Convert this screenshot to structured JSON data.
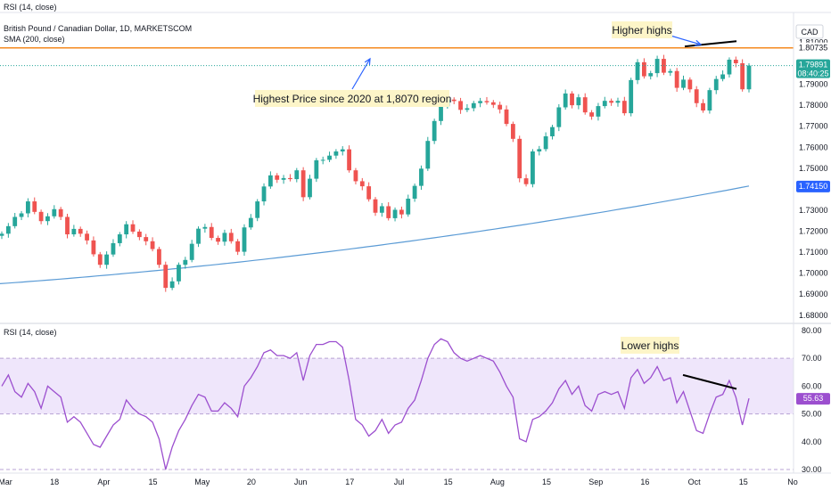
{
  "header": {
    "top_label": "RSI (14, close)",
    "symbol_title": "British Pound / Canadian Dollar, 1D, MARKETSCOM",
    "sma_label": "SMA (200, close)",
    "currency": "CAD"
  },
  "rsi_pane": {
    "label": "RSI (14, close)"
  },
  "annotations": {
    "higher_highs": "Higher highs",
    "lower_highs": "Lower highs",
    "highest_price": "Highest Price since 2020 at 1,8070 region"
  },
  "price_badges": {
    "current_price": "1.79891",
    "countdown": "08:40:25",
    "sma_value": "1.74150",
    "resistance_value": "1.80735",
    "rsi_value": "55.63"
  },
  "colors": {
    "up": "#26a69a",
    "down": "#ef5350",
    "sma": "#5b9bd5",
    "resistance": "#f5891f",
    "rsi_line": "#9c4fcf",
    "rsi_band": "#efe6fb",
    "arrow": "#2962ff",
    "trendline": "#000000",
    "callout_bg": "#fdf5c8"
  },
  "chart_data": [
    {
      "type": "candlestick",
      "title": "British Pound / Canadian Dollar, 1D, MARKETSCOM",
      "x_ticks": [
        "Mar",
        "18",
        "Apr",
        "15",
        "May",
        "20",
        "Jun",
        "17",
        "Jul",
        "15",
        "Aug",
        "15",
        "Sep",
        "16",
        "Oct",
        "15",
        "No"
      ],
      "y_ticks": [
        "1.68000",
        "1.69000",
        "1.70000",
        "1.71000",
        "1.72000",
        "1.73000",
        "1.74000",
        "1.75000",
        "1.76000",
        "1.77000",
        "1.78000",
        "1.79000",
        "1.80000",
        "1.81000"
      ],
      "ylim": [
        1.6765,
        1.8225
      ],
      "close": [
        1.7188,
        1.7224,
        1.7268,
        1.7285,
        1.7342,
        1.7292,
        1.7248,
        1.7271,
        1.7305,
        1.7268,
        1.7185,
        1.7211,
        1.7188,
        1.7156,
        1.709,
        1.704,
        1.7089,
        1.7143,
        1.7185,
        1.7233,
        1.7198,
        1.7172,
        1.7152,
        1.7115,
        1.704,
        1.693,
        1.6961,
        1.704,
        1.7063,
        1.714,
        1.7212,
        1.722,
        1.7168,
        1.715,
        1.7192,
        1.7152,
        1.7102,
        1.7218,
        1.7263,
        1.7342,
        1.7413,
        1.7466,
        1.7445,
        1.7453,
        1.7448,
        1.749,
        1.7362,
        1.745,
        1.7538,
        1.754,
        1.756,
        1.758,
        1.759,
        1.749,
        1.7438,
        1.7414,
        1.7352,
        1.7288,
        1.7319,
        1.7262,
        1.7302,
        1.728,
        1.7355,
        1.7416,
        1.7498,
        1.763,
        1.7725,
        1.7795,
        1.7827,
        1.782,
        1.7778,
        1.7786,
        1.781,
        1.782,
        1.7814,
        1.7802,
        1.778,
        1.7711,
        1.764,
        1.7452,
        1.7424,
        1.758,
        1.7591,
        1.7652,
        1.7696,
        1.779,
        1.7856,
        1.78,
        1.7838,
        1.7766,
        1.7746,
        1.7796,
        1.7821,
        1.7812,
        1.7821,
        1.7762,
        1.792,
        1.8005,
        1.7938,
        1.7953,
        1.8021,
        1.7955,
        1.7963,
        1.7883,
        1.7922,
        1.7876,
        1.781,
        1.7775,
        1.7872,
        1.7925,
        1.7947,
        1.8017,
        1.8,
        1.7876,
        1.7989
      ],
      "sma_200": {
        "start": 1.695,
        "end": 1.7415
      },
      "resistance": 1.80735,
      "higher_highs_line": [
        1.808,
        1.8105
      ]
    },
    {
      "type": "line",
      "title": "RSI (14, close)",
      "y_ticks": [
        "30.00",
        "40.00",
        "50.00",
        "60.00",
        "70.00",
        "80.00"
      ],
      "ylim": [
        28.7,
        81.6
      ],
      "band": [
        50,
        70
      ],
      "values": [
        60,
        64,
        58,
        56,
        61,
        58,
        52,
        60,
        58,
        56,
        47,
        49,
        47,
        43,
        39,
        38,
        42,
        46,
        48,
        55,
        52,
        50,
        49,
        47,
        41,
        30,
        38,
        44,
        48,
        53,
        57,
        56,
        51,
        51,
        54,
        52,
        49,
        60,
        63,
        67,
        72,
        73,
        71,
        71,
        70,
        72,
        62,
        71,
        75,
        75,
        76,
        76,
        74,
        62,
        48,
        46,
        42,
        44,
        48,
        43,
        46,
        47,
        52,
        55,
        62,
        70,
        75,
        77,
        76,
        72,
        70,
        69,
        70,
        71,
        70,
        69,
        65,
        60,
        56,
        41,
        40,
        48,
        49,
        51,
        54,
        59,
        62,
        57,
        60,
        53,
        51,
        57,
        58,
        57,
        58,
        52,
        63,
        66,
        61,
        63,
        67,
        62,
        63,
        54,
        58,
        51,
        44,
        43,
        50,
        56,
        57,
        62,
        56,
        46,
        55.6
      ],
      "lower_highs_line": [
        64,
        59
      ]
    }
  ]
}
